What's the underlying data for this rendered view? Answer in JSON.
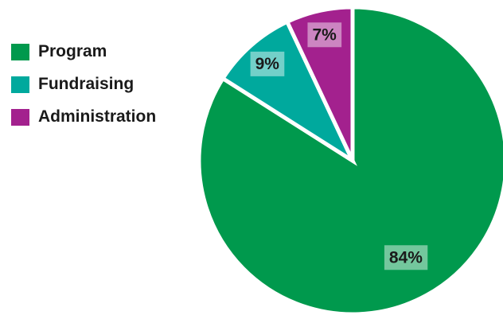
{
  "chart_data": {
    "type": "pie",
    "categories": [
      "Program",
      "Fundraising",
      "Administration"
    ],
    "values": [
      84,
      9,
      7
    ],
    "data_labels": [
      "84%",
      "9%",
      "7%"
    ],
    "colors": [
      "#00994d",
      "#00a99d",
      "#a3218e"
    ],
    "legend_position": "left",
    "title": ""
  }
}
